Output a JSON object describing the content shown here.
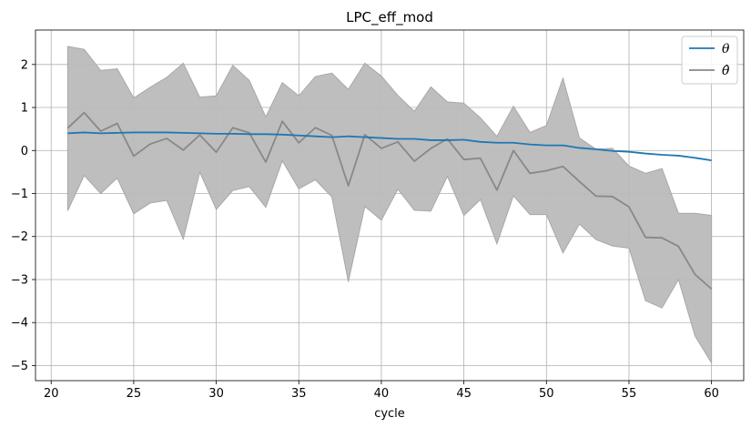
{
  "chart_data": {
    "type": "line",
    "title": "LPC_eff_mod",
    "xlabel": "cycle",
    "ylabel": "",
    "xlim": [
      19.05,
      61.95
    ],
    "ylim": [
      -5.35,
      2.8
    ],
    "x_ticks": [
      20,
      25,
      30,
      35,
      40,
      45,
      50,
      55,
      60
    ],
    "y_ticks": [
      -5,
      -4,
      -3,
      -2,
      -1,
      0,
      1,
      2
    ],
    "grid": true,
    "legend_position": "top-right",
    "x": [
      21,
      22,
      23,
      24,
      25,
      26,
      27,
      28,
      29,
      30,
      31,
      32,
      33,
      34,
      35,
      36,
      37,
      38,
      39,
      40,
      41,
      42,
      43,
      44,
      45,
      46,
      47,
      48,
      49,
      50,
      51,
      52,
      53,
      54,
      55,
      56,
      57,
      58,
      59,
      60
    ],
    "series": [
      {
        "name": "θ",
        "color": "#1f77b4",
        "values": [
          0.4,
          0.42,
          0.4,
          0.41,
          0.42,
          0.42,
          0.42,
          0.41,
          0.4,
          0.39,
          0.39,
          0.38,
          0.38,
          0.37,
          0.35,
          0.33,
          0.31,
          0.33,
          0.31,
          0.29,
          0.27,
          0.27,
          0.24,
          0.24,
          0.25,
          0.2,
          0.18,
          0.18,
          0.14,
          0.12,
          0.12,
          0.06,
          0.03,
          -0.01,
          -0.03,
          -0.07,
          -0.1,
          -0.12,
          -0.17,
          -0.23
        ]
      },
      {
        "name": "θ̂",
        "color": "#888888",
        "values": [
          0.52,
          0.88,
          0.45,
          0.63,
          -0.13,
          0.15,
          0.28,
          0.01,
          0.36,
          -0.04,
          0.53,
          0.41,
          -0.27,
          0.68,
          0.18,
          0.53,
          0.35,
          -0.82,
          0.37,
          0.05,
          0.2,
          -0.25,
          0.05,
          0.27,
          -0.21,
          -0.18,
          -0.92,
          0.0,
          -0.53,
          -0.47,
          -0.37,
          -0.72,
          -1.06,
          -1.07,
          -1.31,
          -2.02,
          -2.03,
          -2.23,
          -2.88,
          -3.22
        ],
        "band_upper": [
          2.42,
          2.35,
          1.86,
          1.9,
          1.22,
          1.47,
          1.7,
          2.03,
          1.24,
          1.27,
          1.98,
          1.63,
          0.78,
          1.58,
          1.27,
          1.72,
          1.8,
          1.42,
          2.03,
          1.73,
          1.28,
          0.91,
          1.48,
          1.13,
          1.1,
          0.76,
          0.33,
          1.03,
          0.42,
          0.58,
          1.68,
          0.29,
          0.03,
          0.05,
          -0.36,
          -0.53,
          -0.42,
          -1.46,
          -1.46,
          -1.51
        ],
        "band_lower": [
          -1.4,
          -0.58,
          -1.0,
          -0.64,
          -1.47,
          -1.22,
          -1.16,
          -2.06,
          -0.5,
          -1.37,
          -0.93,
          -0.84,
          -1.32,
          -0.24,
          -0.89,
          -0.68,
          -1.08,
          -3.05,
          -1.3,
          -1.62,
          -0.9,
          -1.39,
          -1.41,
          -0.6,
          -1.51,
          -1.14,
          -2.17,
          -1.05,
          -1.49,
          -1.49,
          -2.38,
          -1.71,
          -2.07,
          -2.22,
          -2.27,
          -3.49,
          -3.66,
          -3.0,
          -4.31,
          -4.94
        ],
        "band_color": "#bbbbbb"
      }
    ]
  }
}
